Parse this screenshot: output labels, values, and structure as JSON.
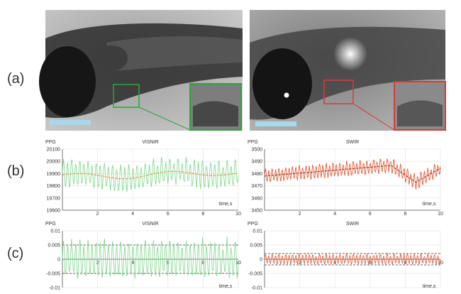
{
  "panel_labels": {
    "a": "(a)",
    "b": "(b)",
    "c": "(c)"
  },
  "images": [
    {
      "name": "visnir-zebrafish-image",
      "inset_color": "#2fa43a",
      "scalebar_color": "#a8d8ea"
    },
    {
      "name": "swir-zebrafish-image",
      "inset_color": "#d83a3a",
      "scalebar_color": "#a8d8ea"
    }
  ],
  "chart_data": [
    {
      "id": "b-visnir",
      "type": "line",
      "title": "VISNIR",
      "ylabel": "PPG",
      "xlabel": "time,s",
      "xlim": [
        0,
        10
      ],
      "ylim": [
        19600,
        20100
      ],
      "xticks": [
        "2",
        "4",
        "6",
        "8",
        "10"
      ],
      "yticks": [
        "19600",
        "19700",
        "19800",
        "19900",
        "20000",
        "20100"
      ],
      "series": [
        {
          "color": "#7fd68c",
          "style": "solid",
          "kind": "raw"
        },
        {
          "color": "#e08a2a",
          "style": "dashed",
          "kind": "trend"
        }
      ]
    },
    {
      "id": "b-swir",
      "type": "line",
      "title": "SWIR",
      "ylabel": "PPG",
      "xlabel": "time,s",
      "xlim": [
        0,
        10
      ],
      "ylim": [
        3450,
        3500
      ],
      "xticks": [
        "2",
        "4",
        "6",
        "8",
        "10"
      ],
      "yticks": [
        "3450",
        "3460",
        "3470",
        "3480",
        "3490",
        "3500"
      ],
      "series": [
        {
          "color": "#e0502a",
          "style": "solid",
          "kind": "raw"
        },
        {
          "color": "#8a2a1a",
          "style": "dashed",
          "kind": "trend"
        }
      ]
    },
    {
      "id": "c-visnir",
      "type": "line",
      "title": "VISNIR",
      "ylabel": "PPG",
      "xlabel": "time,s",
      "xlim": [
        0,
        10
      ],
      "ylim": [
        -0.01,
        0.01
      ],
      "xticks": [
        "2",
        "4",
        "6",
        "8",
        "10"
      ],
      "yticks": [
        "-0.01",
        "-0.005",
        "0",
        "0.005",
        "0.01"
      ],
      "thresholds": [
        0.005,
        -0.005
      ],
      "series": [
        {
          "color": "#7fd68c",
          "style": "solid",
          "kind": "filtered"
        }
      ]
    },
    {
      "id": "c-swir",
      "type": "line",
      "title": "SWIR",
      "ylabel": "PPG",
      "xlabel": "time,s",
      "xlim": [
        0,
        10
      ],
      "ylim": [
        -0.01,
        0.01
      ],
      "xticks": [
        "2",
        "4",
        "6",
        "8",
        "10"
      ],
      "yticks": [
        "-0.01",
        "-0.005",
        "0",
        "0.005",
        "0.01"
      ],
      "thresholds": [
        0.002,
        -0.002
      ],
      "series": [
        {
          "color": "#e0502a",
          "style": "solid",
          "kind": "filtered"
        }
      ]
    }
  ]
}
